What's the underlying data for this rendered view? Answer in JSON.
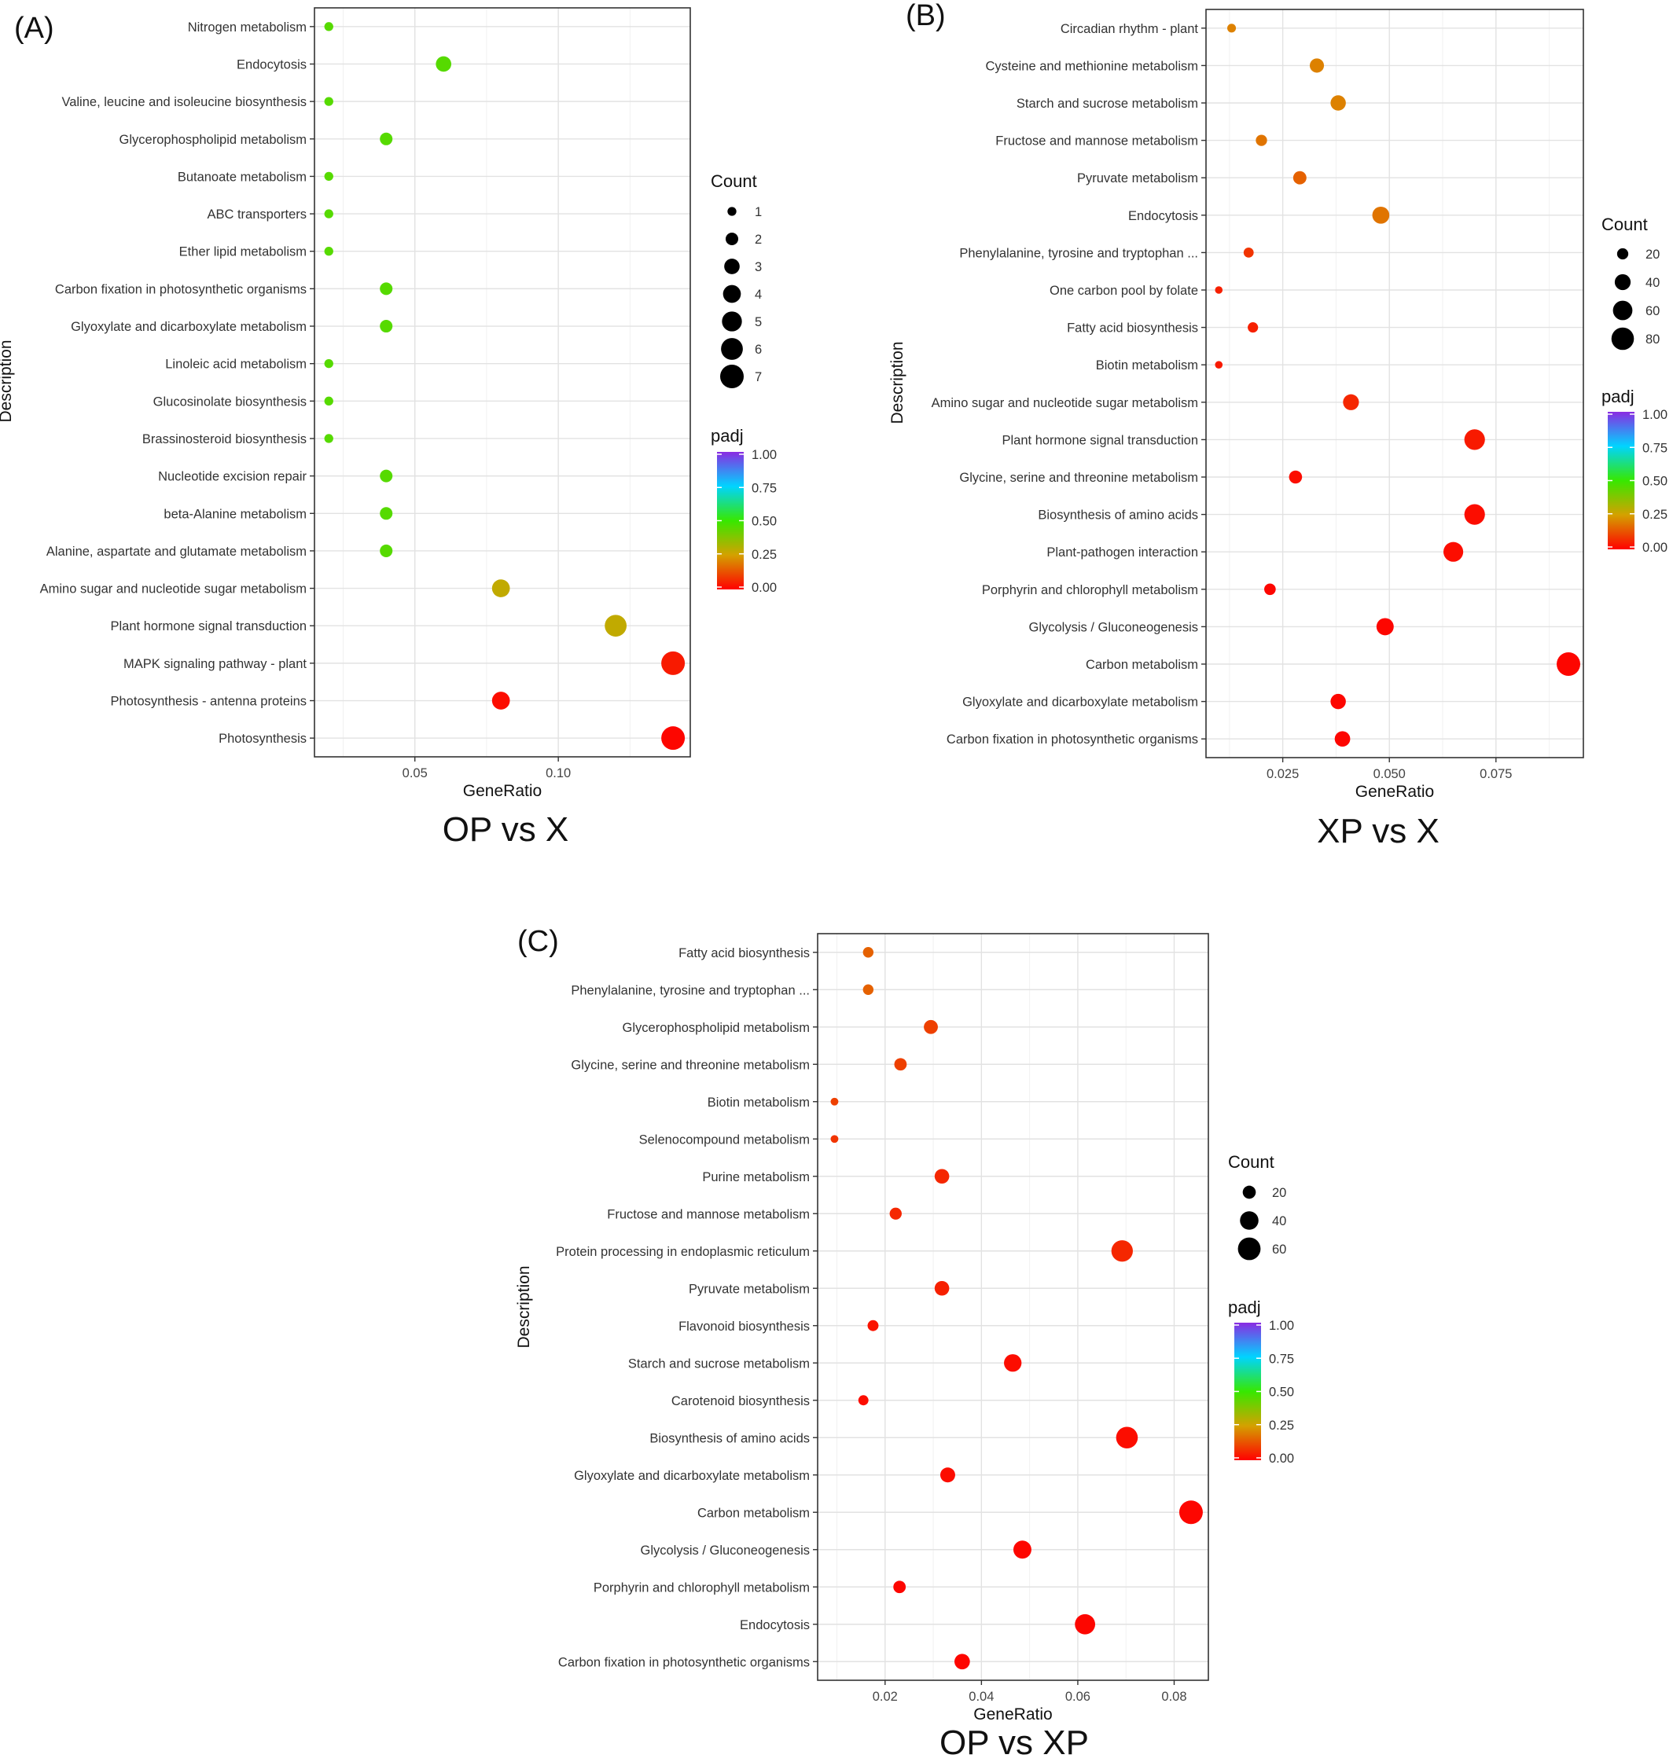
{
  "chart_data": [
    {
      "panel_label": "(A)",
      "caption": "OP vs X",
      "type": "scatter",
      "xlabel": "GeneRatio",
      "ylabel": "Description",
      "xlim": [
        0.015,
        0.146
      ],
      "xticks": [
        0.05,
        0.1
      ],
      "xtick_labels": [
        "0.05",
        "0.10"
      ],
      "grid": true,
      "categories": [
        "Nitrogen metabolism",
        "Endocytosis",
        "Valine, leucine and isoleucine biosynthesis",
        "Glycerophospholipid metabolism",
        "Butanoate metabolism",
        "ABC transporters",
        "Ether lipid metabolism",
        "Carbon fixation in photosynthetic organisms",
        "Glyoxylate and dicarboxylate metabolism",
        "Linoleic acid metabolism",
        "Glucosinolate biosynthesis",
        "Brassinosteroid biosynthesis",
        "Nucleotide excision repair",
        "beta-Alanine metabolism",
        "Alanine, aspartate and glutamate metabolism",
        "Amino sugar and nucleotide sugar metabolism",
        "Plant hormone signal transduction",
        "MAPK signaling pathway - plant",
        "Photosynthesis - antenna proteins",
        "Photosynthesis"
      ],
      "gene_ratio": [
        0.02,
        0.06,
        0.02,
        0.04,
        0.02,
        0.02,
        0.02,
        0.04,
        0.04,
        0.02,
        0.02,
        0.02,
        0.04,
        0.04,
        0.04,
        0.08,
        0.12,
        0.14,
        0.08,
        0.14
      ],
      "count": [
        1,
        3,
        1,
        2,
        1,
        1,
        1,
        2,
        2,
        1,
        1,
        1,
        2,
        2,
        2,
        4,
        6,
        7,
        4,
        7
      ],
      "padj": [
        0.45,
        0.45,
        0.45,
        0.45,
        0.45,
        0.45,
        0.45,
        0.45,
        0.45,
        0.45,
        0.45,
        0.45,
        0.45,
        0.45,
        0.45,
        0.28,
        0.28,
        0.04,
        0.02,
        0.01
      ],
      "size_legend": {
        "title": "Count",
        "values": [
          1,
          2,
          3,
          4,
          5,
          6,
          7
        ],
        "labels": [
          "1",
          "2",
          "3",
          "4",
          "5",
          "6",
          "7"
        ],
        "max": 7
      },
      "color_legend": {
        "title": "padj",
        "ticks": [
          "1.00",
          "0.75",
          "0.50",
          "0.25",
          "0.00"
        ]
      }
    },
    {
      "panel_label": "(B)",
      "caption": "XP vs X",
      "type": "scatter",
      "xlabel": "GeneRatio",
      "ylabel": "Description",
      "xlim": [
        0.007,
        0.0955
      ],
      "xticks": [
        0.025,
        0.05,
        0.075
      ],
      "xtick_labels": [
        "0.025",
        "0.050",
        "0.075"
      ],
      "grid": true,
      "categories": [
        "Circadian rhythm - plant",
        "Cysteine and methionine metabolism",
        "Starch and sucrose metabolism",
        "Fructose and mannose metabolism",
        "Pyruvate metabolism",
        "Endocytosis",
        "Phenylalanine, tyrosine and tryptophan ...",
        "One carbon pool by folate",
        "Fatty acid biosynthesis",
        "Biotin metabolism",
        "Amino sugar and nucleotide sugar metabolism",
        "Plant hormone signal transduction",
        "Glycine, serine and threonine metabolism",
        "Biosynthesis of amino acids",
        "Plant-pathogen interaction",
        "Porphyrin and chlorophyll metabolism",
        "Glycolysis / Gluconeogenesis",
        "Carbon metabolism",
        "Glyoxylate and dicarboxylate metabolism",
        "Carbon fixation in photosynthetic organisms"
      ],
      "gene_ratio": [
        0.013,
        0.033,
        0.038,
        0.02,
        0.029,
        0.048,
        0.017,
        0.01,
        0.018,
        0.01,
        0.041,
        0.07,
        0.028,
        0.07,
        0.065,
        0.022,
        0.049,
        0.092,
        0.038,
        0.039
      ],
      "count": [
        12,
        32,
        37,
        20,
        28,
        46,
        16,
        9,
        17,
        9,
        40,
        67,
        27,
        67,
        62,
        21,
        47,
        88,
        37,
        38
      ],
      "padj": [
        0.2,
        0.2,
        0.2,
        0.18,
        0.15,
        0.18,
        0.08,
        0.05,
        0.05,
        0.04,
        0.06,
        0.04,
        0.02,
        0.02,
        0.02,
        0.01,
        0.01,
        0.01,
        0.01,
        0.01
      ],
      "size_legend": {
        "title": "Count",
        "values": [
          20,
          40,
          60,
          80
        ],
        "labels": [
          "20",
          "40",
          "60",
          "80"
        ],
        "max": 88
      },
      "color_legend": {
        "title": "padj",
        "ticks": [
          "1.00",
          "0.75",
          "0.50",
          "0.25",
          "0.00"
        ]
      }
    },
    {
      "panel_label": "(C)",
      "caption": "OP vs XP",
      "type": "scatter",
      "xlabel": "GeneRatio",
      "ylabel": "Description",
      "xlim": [
        0.006,
        0.0871
      ],
      "xticks": [
        0.02,
        0.04,
        0.06,
        0.08
      ],
      "xtick_labels": [
        "0.02",
        "0.04",
        "0.06",
        "0.08"
      ],
      "grid": true,
      "categories": [
        "Fatty acid biosynthesis",
        "Phenylalanine, tyrosine and tryptophan ...",
        "Glycerophospholipid metabolism",
        "Glycine, serine and threonine metabolism",
        "Biotin metabolism",
        "Selenocompound metabolism",
        "Purine metabolism",
        "Fructose and mannose metabolism",
        "Protein processing in endoplasmic reticulum",
        "Pyruvate metabolism",
        "Flavonoid biosynthesis",
        "Starch and sucrose metabolism",
        "Carotenoid biosynthesis",
        "Biosynthesis of amino acids",
        "Glyoxylate and dicarboxylate metabolism",
        "Carbon metabolism",
        "Glycolysis / Gluconeogenesis",
        "Porphyrin and chlorophyll metabolism",
        "Endocytosis",
        "Carbon fixation in photosynthetic organisms"
      ],
      "gene_ratio": [
        0.0165,
        0.0165,
        0.0295,
        0.0232,
        0.0095,
        0.0095,
        0.0318,
        0.0222,
        0.0692,
        0.0318,
        0.0175,
        0.0465,
        0.0155,
        0.0702,
        0.033,
        0.0835,
        0.0485,
        0.023,
        0.0615,
        0.036
      ],
      "count": [
        13,
        13,
        23,
        18,
        7,
        7,
        25,
        17,
        54,
        25,
        14,
        36,
        12,
        55,
        26,
        65,
        38,
        18,
        48,
        28
      ],
      "padj": [
        0.15,
        0.15,
        0.1,
        0.1,
        0.1,
        0.08,
        0.06,
        0.06,
        0.06,
        0.05,
        0.03,
        0.02,
        0.02,
        0.02,
        0.02,
        0.01,
        0.01,
        0.01,
        0.01,
        0.01
      ],
      "size_legend": {
        "title": "Count",
        "values": [
          20,
          40,
          60
        ],
        "labels": [
          "20",
          "40",
          "60"
        ],
        "max": 65
      },
      "color_legend": {
        "title": "padj",
        "ticks": [
          "1.00",
          "0.75",
          "0.50",
          "0.25",
          "0.00"
        ]
      }
    }
  ]
}
